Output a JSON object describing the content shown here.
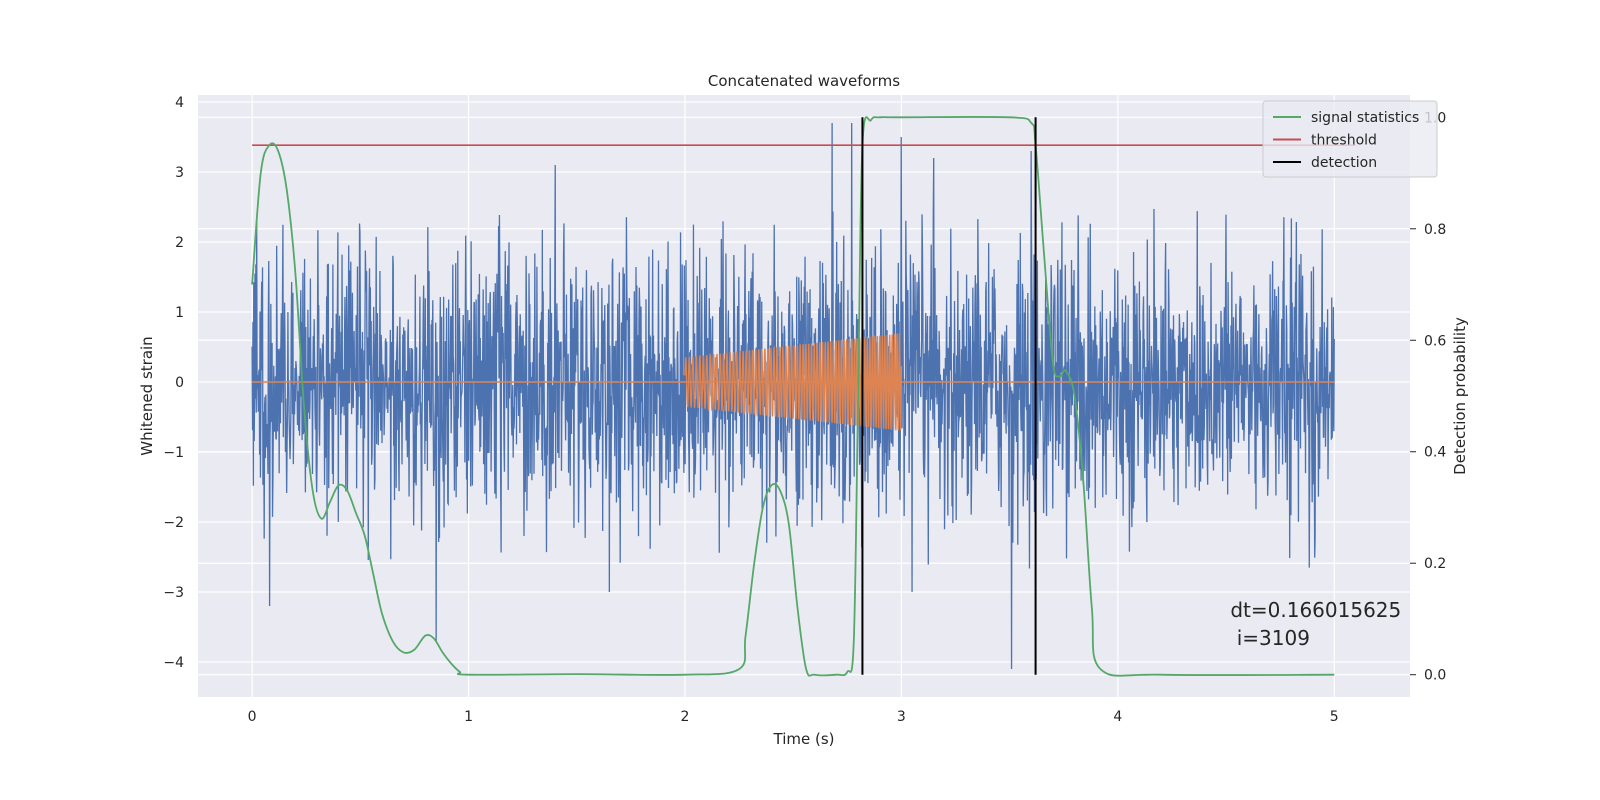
{
  "chart_data": {
    "type": "line",
    "title": "Concatenated waveforms",
    "xlabel": "Time (s)",
    "ylabel_left": "Whitened strain",
    "ylabel_right": "Detection probability",
    "xlim": [
      -0.25,
      5.35
    ],
    "ylim_left": [
      -4.5,
      4.1
    ],
    "ylim_right": [
      -0.04,
      1.04
    ],
    "x_ticks": [
      0,
      1,
      2,
      3,
      4,
      5
    ],
    "y_left_ticks": [
      -4,
      -3,
      -2,
      -1,
      0,
      1,
      2,
      3,
      4
    ],
    "y_right_ticks": [
      "0.0",
      "0.2",
      "0.4",
      "0.6",
      "0.8",
      "1.0"
    ],
    "grid": true,
    "legend_position": "upper right",
    "series": [
      {
        "name": "",
        "axis": "left",
        "color": "#4c72b0",
        "kind": "noise",
        "x_range": [
          0,
          5
        ],
        "typical_amplitude": 1.0,
        "peak_values": [
          {
            "x": 0.08,
            "y": 2.6
          },
          {
            "x": 0.08,
            "y": -3.2
          },
          {
            "x": 0.85,
            "y": -3.7
          },
          {
            "x": 1.4,
            "y": 3.1
          },
          {
            "x": 1.65,
            "y": -3.0
          },
          {
            "x": 2.68,
            "y": 3.7
          },
          {
            "x": 2.77,
            "y": 3.7
          },
          {
            "x": 3.0,
            "y": 3.5
          },
          {
            "x": 3.15,
            "y": 3.2
          },
          {
            "x": 3.51,
            "y": -4.1
          },
          {
            "x": 3.6,
            "y": 3.3
          },
          {
            "x": 3.05,
            "y": -3.0
          }
        ]
      },
      {
        "name": "",
        "axis": "left",
        "color": "#dd8452",
        "kind": "chirp",
        "baseline_x": [
          0,
          5
        ],
        "baseline_y": 0,
        "chirp_x_range": [
          2.0,
          3.0
        ],
        "amplitude_start": 0.35,
        "amplitude_end": 0.7
      },
      {
        "name": "signal statistics",
        "axis": "right",
        "color": "#55a868",
        "x": [
          0.0,
          0.04,
          0.08,
          0.12,
          0.16,
          0.2,
          0.24,
          0.28,
          0.32,
          0.36,
          0.4,
          0.44,
          0.48,
          0.52,
          0.56,
          0.6,
          0.65,
          0.7,
          0.75,
          0.8,
          0.84,
          0.88,
          0.92,
          0.96,
          1.0,
          1.5,
          2.0,
          2.25,
          2.28,
          2.32,
          2.36,
          2.4,
          2.44,
          2.48,
          2.52,
          2.56,
          2.6,
          2.7,
          2.75,
          2.78,
          2.8,
          2.82,
          2.86,
          2.9,
          3.0,
          3.5,
          3.6,
          3.62,
          3.66,
          3.7,
          3.73,
          3.76,
          3.8,
          3.84,
          3.88,
          3.92,
          4.2,
          5.0
        ],
        "y": [
          0.7,
          0.9,
          0.95,
          0.94,
          0.87,
          0.72,
          0.48,
          0.33,
          0.28,
          0.31,
          0.34,
          0.33,
          0.29,
          0.25,
          0.18,
          0.11,
          0.06,
          0.04,
          0.045,
          0.07,
          0.065,
          0.04,
          0.02,
          0.005,
          0.0,
          0.001,
          0.0,
          0.01,
          0.07,
          0.2,
          0.3,
          0.34,
          0.33,
          0.27,
          0.12,
          0.01,
          0.0,
          0.0,
          0.005,
          0.06,
          0.5,
          0.95,
          0.995,
          1.0,
          1.0,
          1.0,
          0.99,
          0.95,
          0.75,
          0.56,
          0.535,
          0.545,
          0.5,
          0.35,
          0.12,
          0.01,
          0.0,
          0.0
        ]
      },
      {
        "name": "threshold",
        "axis": "right",
        "color": "#c44e52",
        "x": [
          0,
          5.1
        ],
        "y": [
          0.95,
          0.95
        ]
      },
      {
        "name": "detection",
        "axis": "right",
        "color": "#000000",
        "vlines": [
          2.82,
          3.62
        ],
        "ymin": 0.0,
        "ymax": 1.0
      }
    ],
    "annotation": {
      "lines": [
        "dt=0.166015625",
        " i=3109"
      ],
      "x": 4.52,
      "y_right": 0.1
    }
  }
}
